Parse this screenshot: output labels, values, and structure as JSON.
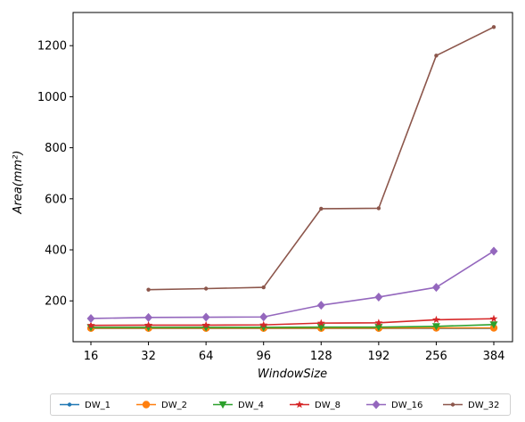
{
  "chart_data": {
    "type": "line",
    "categories": [
      "16",
      "32",
      "64",
      "96",
      "128",
      "192",
      "256",
      "384"
    ],
    "xlabel": "WindowSize",
    "ylabel": "Area(mm²)",
    "ylim": [
      40,
      1330
    ],
    "yticks": [
      200,
      400,
      600,
      800,
      1000,
      1200
    ],
    "grid": false,
    "legend": "bottom-outside",
    "series": [
      {
        "name": "DW_1",
        "color": "#1f77b4",
        "marker": "point",
        "values": [
          92,
          92,
          92,
          92,
          92,
          92,
          92,
          92
        ]
      },
      {
        "name": "DW_2",
        "color": "#ff7f0e",
        "marker": "circle",
        "values": [
          93,
          93,
          93,
          93,
          93,
          93,
          94,
          94
        ]
      },
      {
        "name": "DW_4",
        "color": "#2ca02c",
        "marker": "triangle-down",
        "values": [
          96,
          96,
          96,
          96,
          97,
          97,
          100,
          107
        ]
      },
      {
        "name": "DW_8",
        "color": "#d62728",
        "marker": "star",
        "values": [
          104,
          105,
          105,
          106,
          113,
          114,
          126,
          130
        ]
      },
      {
        "name": "DW_16",
        "color": "#9467bd",
        "marker": "diamond",
        "values": [
          131,
          135,
          136,
          137,
          183,
          215,
          253,
          395
        ]
      },
      {
        "name": "DW_32",
        "color": "#8c564b",
        "marker": "point",
        "values": [
          null,
          244,
          248,
          253,
          561,
          563,
          1161,
          1273
        ]
      }
    ]
  }
}
